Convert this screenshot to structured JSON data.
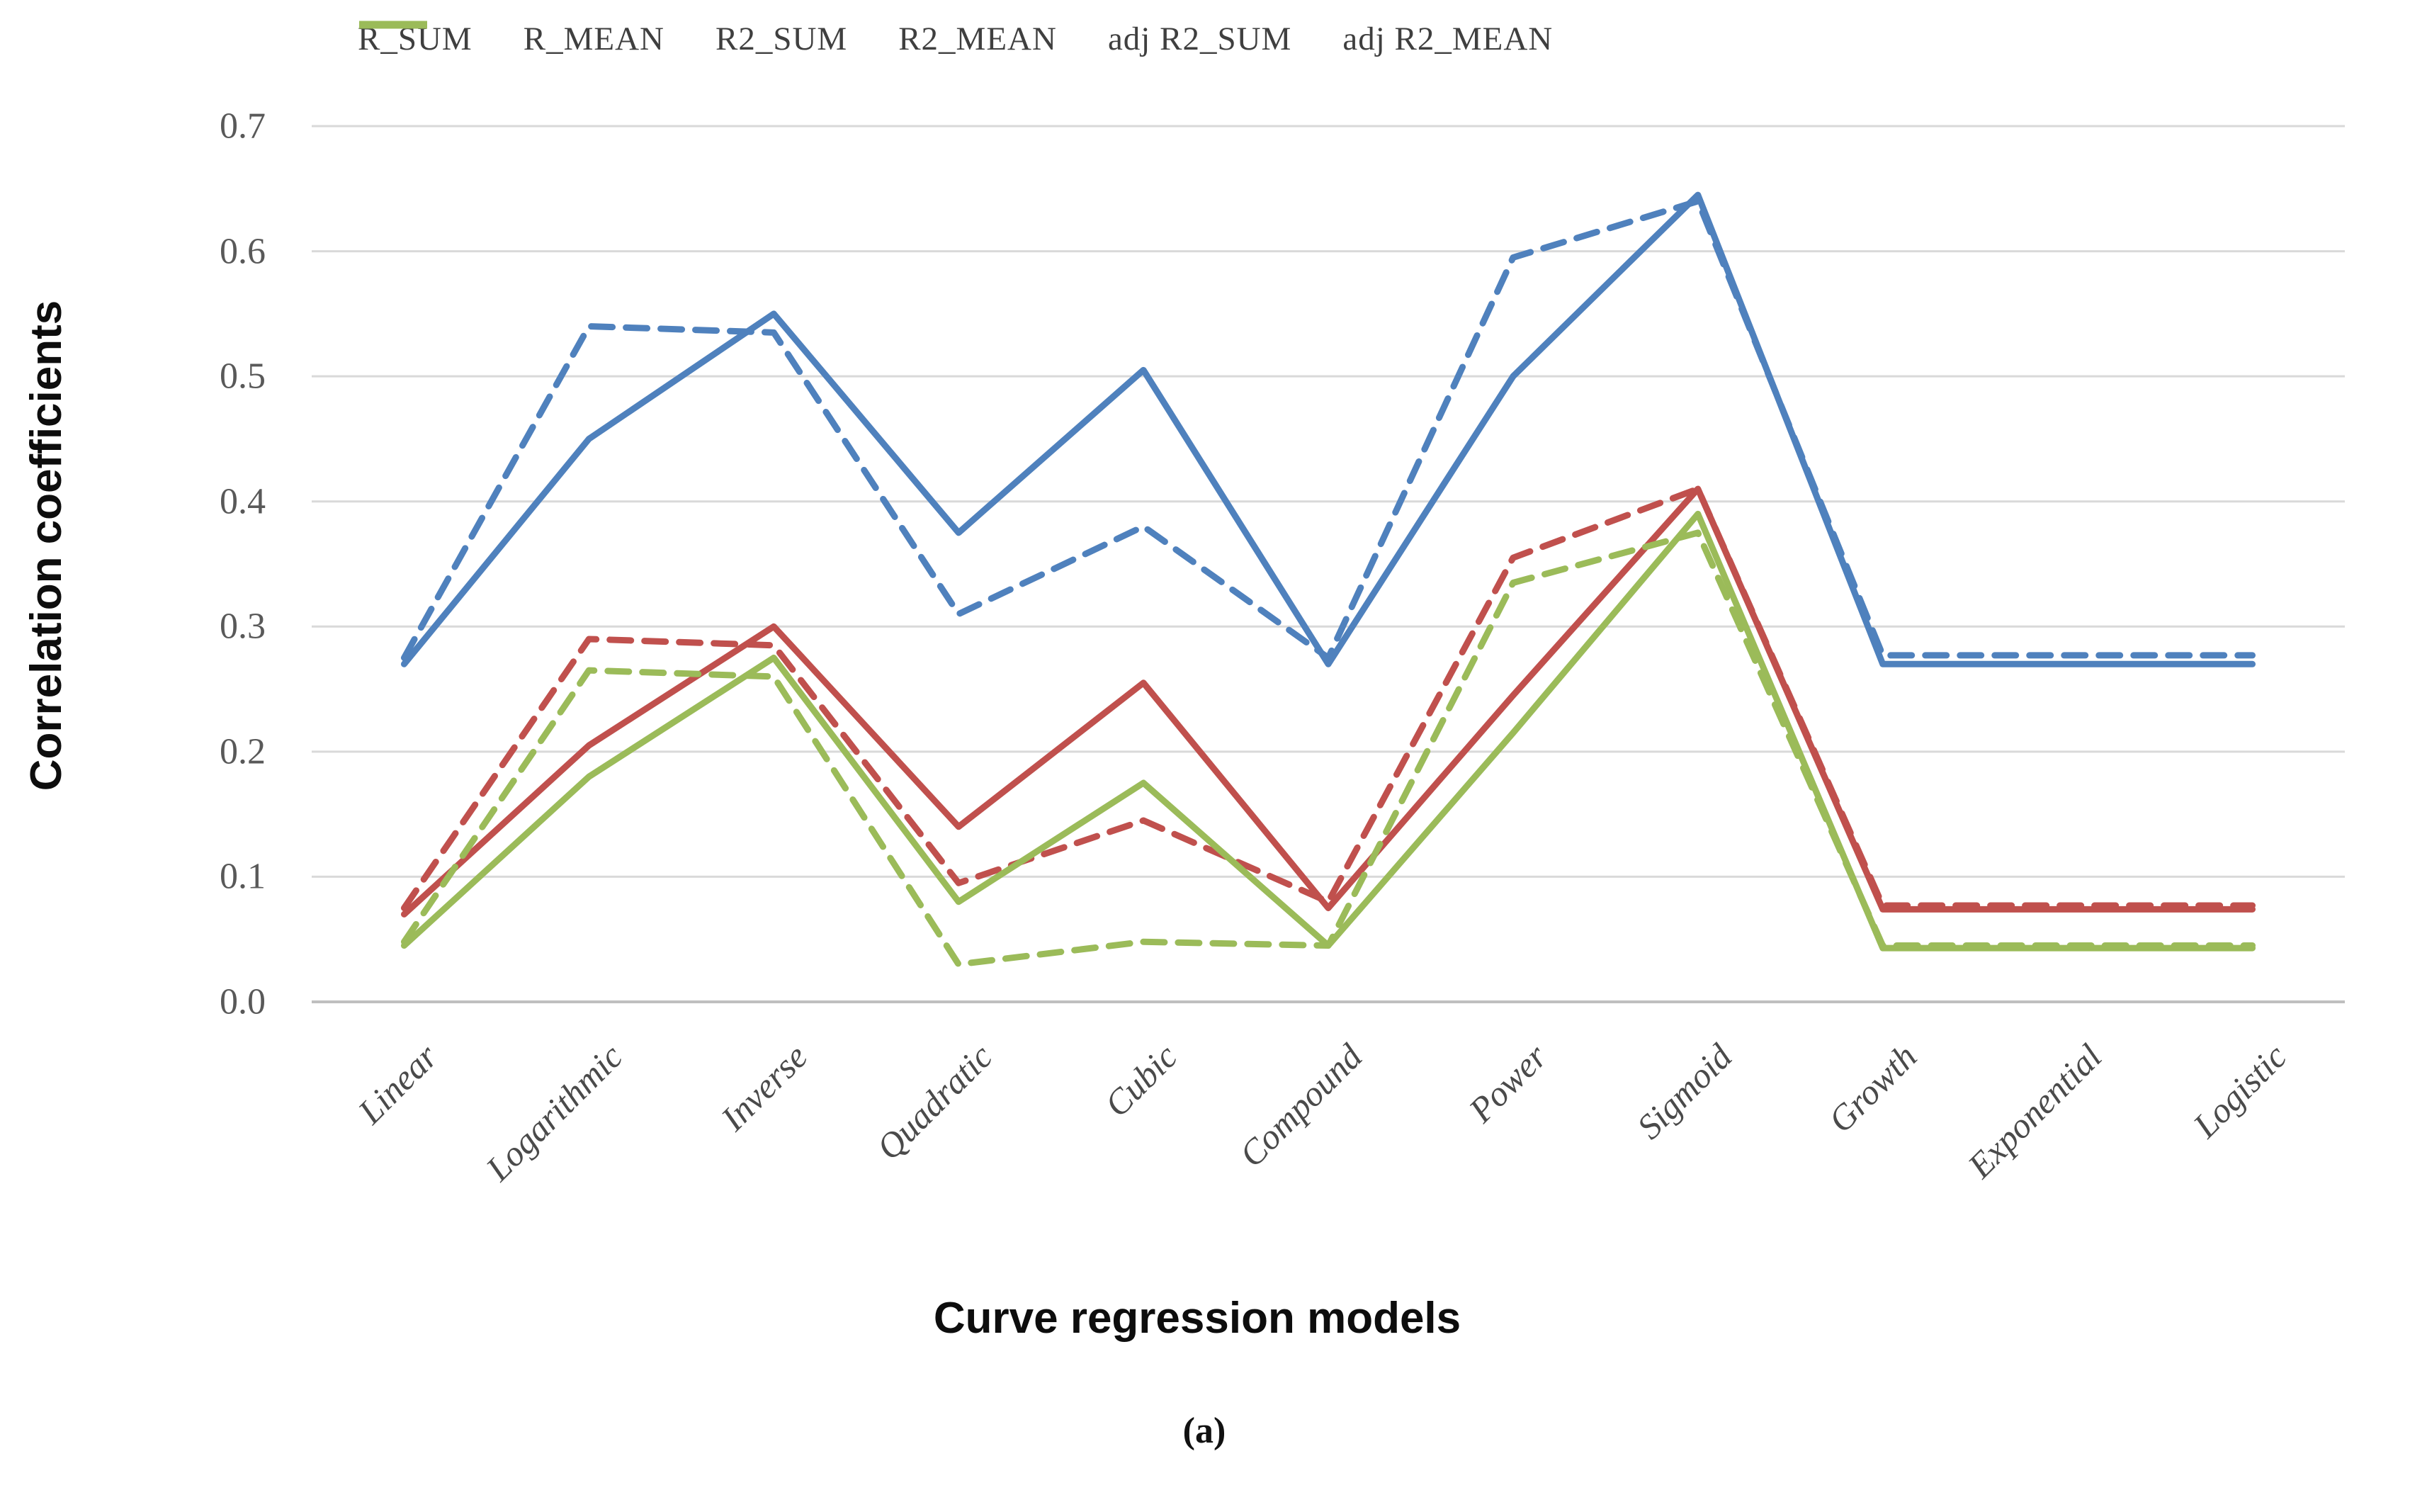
{
  "y_axis_title": "Correlation coefficients",
  "x_axis_title": "Curve regression models",
  "caption": "(a)",
  "colors": {
    "blue": "#4F81BD",
    "red": "#C0504D",
    "green": "#9BBB59",
    "gridline": "#D9D9D9",
    "axis_line": "#BFBFBF",
    "tick_text": "#595959",
    "legend_text": "#3f3f3f"
  },
  "chart_data": {
    "type": "line",
    "title": "",
    "xlabel": "Curve regression models",
    "ylabel": "Correlation coefficients",
    "ylim": [
      0.0,
      0.7
    ],
    "y_ticks": [
      "0.7",
      "0.6",
      "0.5",
      "0.4",
      "0.3",
      "0.2",
      "0.1",
      "0.0"
    ],
    "y_tick_values": [
      0.7,
      0.6,
      0.5,
      0.4,
      0.3,
      0.2,
      0.1,
      0.0
    ],
    "grid": "horizontal",
    "legend_position": "top",
    "categories": [
      "Linear",
      "Logarithmic",
      "Inverse",
      "Quadratic",
      "Cubic",
      "Compound",
      "Power",
      "Sigmoid",
      "Growth",
      "Exponential",
      "Logistic"
    ],
    "series": [
      {
        "name": "R_SUM",
        "color": "blue",
        "dashed": false,
        "values": [
          0.27,
          0.45,
          0.55,
          0.375,
          0.505,
          0.27,
          0.5,
          0.645,
          0.27,
          0.27,
          0.27
        ]
      },
      {
        "name": "R_MEAN",
        "color": "blue",
        "dashed": true,
        "values": [
          0.275,
          0.54,
          0.535,
          0.31,
          0.38,
          0.275,
          0.595,
          0.64,
          0.277,
          0.277,
          0.277
        ]
      },
      {
        "name": "R2_SUM",
        "color": "red",
        "dashed": false,
        "values": [
          0.07,
          0.205,
          0.3,
          0.14,
          0.255,
          0.075,
          0.245,
          0.41,
          0.074,
          0.074,
          0.074
        ]
      },
      {
        "name": "R2_MEAN",
        "color": "red",
        "dashed": true,
        "values": [
          0.075,
          0.29,
          0.285,
          0.095,
          0.145,
          0.08,
          0.355,
          0.41,
          0.077,
          0.077,
          0.077
        ]
      },
      {
        "name": "adj R2_SUM",
        "color": "green",
        "dashed": false,
        "values": [
          0.045,
          0.18,
          0.275,
          0.08,
          0.175,
          0.045,
          0.215,
          0.39,
          0.043,
          0.043,
          0.043
        ]
      },
      {
        "name": "adj R2_MEAN",
        "color": "green",
        "dashed": true,
        "values": [
          0.048,
          0.265,
          0.26,
          0.03,
          0.048,
          0.045,
          0.335,
          0.375,
          0.045,
          0.045,
          0.045
        ]
      }
    ]
  }
}
